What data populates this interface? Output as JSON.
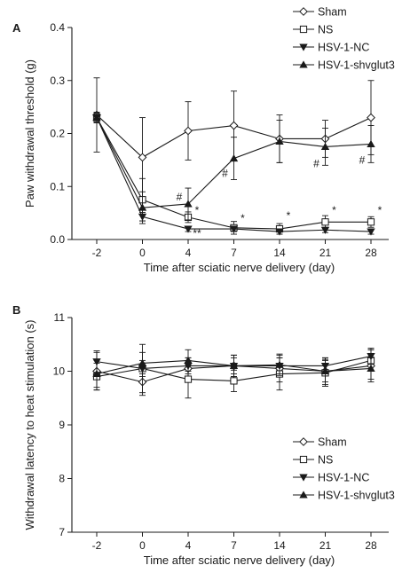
{
  "chart_data": [
    {
      "type": "line",
      "panel": "A",
      "title": "",
      "xlabel": "Time after sciatic nerve delivery (day)",
      "ylabel": "Paw withdrawal threshold (g)",
      "x": [
        "-2",
        "0",
        "4",
        "7",
        "14",
        "21",
        "28"
      ],
      "ylim": [
        0.0,
        0.4
      ],
      "yticks": [
        "0.0",
        "0.1",
        "0.2",
        "0.3",
        "0.4"
      ],
      "legend_position": "top-right",
      "grid": false,
      "series": [
        {
          "name": "Sham",
          "marker": "open-diamond",
          "values": [
            0.235,
            0.155,
            0.205,
            0.215,
            0.19,
            0.19,
            0.23
          ],
          "errors": [
            0.07,
            0.075,
            0.055,
            0.065,
            0.045,
            0.035,
            0.07
          ]
        },
        {
          "name": "NS",
          "marker": "open-square",
          "values": [
            0.23,
            0.075,
            0.042,
            0.022,
            0.02,
            0.033,
            0.033
          ],
          "errors": [
            0.01,
            0.04,
            0.01,
            0.012,
            0.01,
            0.012,
            0.01
          ]
        },
        {
          "name": "HSV-1-NC",
          "marker": "filled-inverted-triangle",
          "values": [
            0.23,
            0.043,
            0.02,
            0.02,
            0.015,
            0.018,
            0.015
          ],
          "errors": [
            0.008,
            0.008,
            0.005,
            0.005,
            0.005,
            0.005,
            0.005
          ]
        },
        {
          "name": "HSV-1-shvglut3",
          "marker": "filled-triangle",
          "values": [
            0.23,
            0.06,
            0.067,
            0.153,
            0.185,
            0.175,
            0.18
          ],
          "errors": [
            0.01,
            0.03,
            0.03,
            0.04,
            0.04,
            0.035,
            0.035
          ]
        }
      ],
      "annotations": [
        {
          "text": "#",
          "x": "4",
          "y": 0.08
        },
        {
          "text": "*",
          "x": "4",
          "y": 0.055
        },
        {
          "text": "**",
          "x": "4",
          "y": 0.012
        },
        {
          "text": "#",
          "x": "7",
          "y": 0.125
        },
        {
          "text": "*",
          "x": "7",
          "y": 0.04
        },
        {
          "text": "*",
          "x": "14",
          "y": 0.045
        },
        {
          "text": "*",
          "x": "21",
          "y": 0.055
        },
        {
          "text": "#",
          "x": "21",
          "y": 0.143
        },
        {
          "text": "*",
          "x": "28",
          "y": 0.055
        },
        {
          "text": "#",
          "x": "28",
          "y": 0.15
        }
      ]
    },
    {
      "type": "line",
      "panel": "B",
      "title": "",
      "xlabel": "Time after sciatic nerve delivery (day)",
      "ylabel": "Withdrawal latency to heat stimulation (s)",
      "x": [
        "-2",
        "0",
        "4",
        "7",
        "14",
        "21",
        "28"
      ],
      "ylim": [
        7,
        11
      ],
      "yticks": [
        "7",
        "8",
        "9",
        "10",
        "11"
      ],
      "legend_position": "bottom-right",
      "grid": false,
      "series": [
        {
          "name": "Sham",
          "marker": "open-diamond",
          "values": [
            10.0,
            9.8,
            10.05,
            10.1,
            10.05,
            10.0,
            10.1
          ],
          "errors": [
            0.35,
            0.25,
            0.2,
            0.2,
            0.25,
            0.25,
            0.3
          ]
        },
        {
          "name": "NS",
          "marker": "open-square",
          "values": [
            9.9,
            10.05,
            9.85,
            9.82,
            9.95,
            9.97,
            10.2
          ],
          "errors": [
            0.25,
            0.45,
            0.35,
            0.2,
            0.3,
            0.25,
            0.2
          ]
        },
        {
          "name": "HSV-1-NC",
          "marker": "filled-inverted-triangle",
          "values": [
            10.18,
            10.05,
            10.1,
            10.1,
            10.1,
            10.1,
            10.28
          ],
          "errors": [
            0.2,
            0.15,
            0.15,
            0.15,
            0.15,
            0.15,
            0.15
          ]
        },
        {
          "name": "HSV-1-shvglut3",
          "marker": "filled-triangle",
          "values": [
            9.95,
            10.15,
            10.2,
            10.1,
            10.12,
            10.0,
            10.05
          ],
          "errors": [
            0.25,
            0.2,
            0.2,
            0.2,
            0.2,
            0.2,
            0.2
          ]
        }
      ],
      "annotations": []
    }
  ]
}
